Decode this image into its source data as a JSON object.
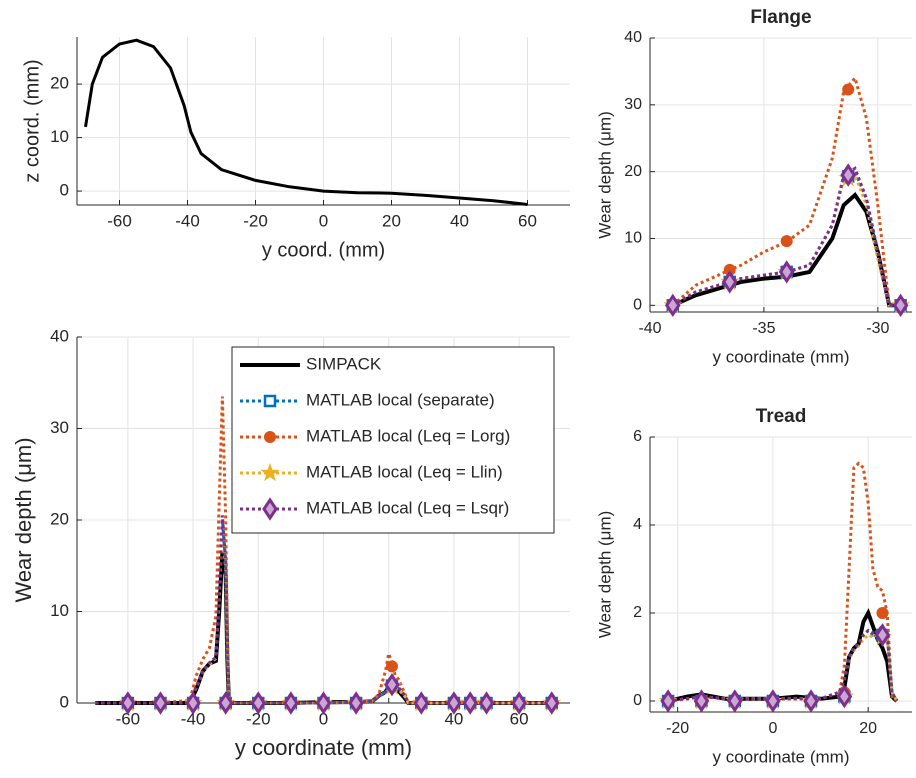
{
  "chart_data": [
    {
      "type": "line",
      "xlabel": "y coord. (mm)",
      "ylabel": "z coord. (mm)",
      "xlim": [
        -72.5,
        72.5
      ],
      "ylim": [
        -2.6,
        28.8
      ],
      "xticks": [
        -60,
        -40,
        -20,
        0,
        20,
        40,
        60
      ],
      "yticks": [
        0,
        10,
        20
      ],
      "grid": true,
      "series": [
        {
          "color": "#000000",
          "line_style": "solid",
          "x": [
            -70,
            -68,
            -65,
            -60,
            -55,
            -50,
            -45,
            -41,
            -39,
            -36,
            -30,
            -20,
            -10,
            0,
            10,
            20,
            30,
            40,
            50,
            60
          ],
          "values": [
            12,
            20,
            25,
            27.5,
            28.2,
            27,
            23,
            16,
            11,
            7,
            4,
            2,
            0.8,
            0,
            -0.3,
            -0.4,
            -0.8,
            -1.3,
            -1.8,
            -2.5
          ]
        }
      ]
    },
    {
      "type": "line",
      "xlabel": "y coordinate (mm)",
      "ylabel": "Wear depth (μm)",
      "xlim": [
        -75.6,
        75.6
      ],
      "ylim": [
        0,
        40
      ],
      "xticks": [
        -60,
        -40,
        -20,
        0,
        20,
        40,
        60
      ],
      "yticks": [
        0,
        10,
        20,
        30,
        40
      ],
      "grid": true,
      "legend": "northeast",
      "x": [
        -70,
        -60,
        -50,
        -41,
        -39,
        -37,
        -35,
        -33,
        -32,
        -31,
        -30,
        -29.5,
        -29,
        -20,
        -10,
        0,
        10,
        15,
        17,
        19,
        20,
        21,
        22,
        23,
        25,
        26,
        30,
        40,
        50,
        60,
        70
      ],
      "series": [
        {
          "name": "SIMPACK",
          "color": "#000000",
          "line_style": "solid",
          "values": [
            0,
            0,
            0,
            0,
            1.5,
            3.5,
            4.3,
            4.6,
            10,
            16.5,
            14,
            5,
            0,
            0,
            0,
            0.1,
            0.1,
            0.2,
            0.8,
            1.2,
            1.8,
            2,
            1.6,
            1.3,
            0.5,
            0,
            0,
            0,
            0,
            0,
            0
          ]
        },
        {
          "name": "MATLAB local (separate)",
          "color": "#0072BD",
          "line_style": "dotted",
          "marker": "square",
          "values": [
            0,
            0,
            0,
            0,
            1.8,
            3.5,
            4.3,
            5,
            12,
            20,
            15,
            6,
            0,
            0,
            0,
            0,
            0.1,
            0.2,
            0.8,
            1.2,
            1.5,
            1.7,
            1.8,
            1.6,
            0.8,
            0,
            0,
            0,
            0,
            0,
            0
          ],
          "markers": {
            "x": [
              -60,
              -50,
              -40,
              -30,
              -20,
              -10,
              0,
              10,
              21,
              30,
              40,
              45,
              50,
              60,
              70
            ],
            "values": [
              0,
              0,
              0,
              0,
              0,
              0,
              0,
              0,
              1.9,
              0,
              0,
              0,
              0,
              0,
              0
            ]
          }
        },
        {
          "name": "MATLAB local (Leq = Lorg)",
          "color": "#D95319",
          "line_style": "dotted",
          "marker": "circle",
          "values": [
            0,
            0,
            0,
            0.3,
            3,
            4.8,
            6,
            9.5,
            22,
            33.5,
            20,
            8,
            0,
            0,
            0,
            0,
            0.1,
            0.2,
            1,
            3.5,
            5.4,
            4.5,
            3,
            2.6,
            1,
            0,
            0,
            0,
            0,
            0,
            0
          ],
          "markers": {
            "x": [
              -60,
              -50,
              -40,
              -30,
              -20,
              -10,
              0,
              10,
              21,
              30,
              40,
              45,
              50,
              60,
              70
            ],
            "values": [
              0,
              0,
              0,
              0,
              0,
              0,
              0,
              0,
              4,
              0,
              0,
              0,
              0,
              0,
              0
            ]
          }
        },
        {
          "name": "MATLAB local (Leq = Llin)",
          "color": "#EDB120",
          "line_style": "dotted",
          "marker": "star",
          "values": [
            0,
            0,
            0,
            0,
            1.7,
            3.4,
            4.2,
            4.9,
            11.5,
            19.5,
            14.5,
            5.5,
            0,
            0,
            0,
            0,
            0.1,
            0.2,
            0.8,
            1.1,
            1.4,
            1.6,
            1.7,
            1.5,
            0.7,
            0,
            0,
            0,
            0,
            0,
            0
          ],
          "markers": {
            "x": [
              -60,
              -50,
              -40,
              -30,
              -20,
              -10,
              0,
              10,
              21,
              30,
              40,
              45,
              50,
              60,
              70
            ],
            "values": [
              0,
              0,
              0,
              0,
              0,
              0,
              0,
              0,
              1.8,
              0,
              0,
              0,
              0,
              0,
              0
            ]
          }
        },
        {
          "name": "MATLAB local (Leq = Lsqr)",
          "color": "#7E2F8E",
          "line_style": "dotted",
          "marker": "diamond",
          "values": [
            0,
            0,
            0,
            0,
            1.8,
            3.5,
            4.4,
            5,
            12.5,
            20.5,
            15.5,
            6,
            0,
            0,
            0,
            0,
            0.1,
            0.2,
            0.8,
            1.2,
            1.6,
            1.8,
            1.9,
            1.7,
            0.8,
            0,
            0,
            0,
            0,
            0,
            0
          ],
          "markers": {
            "x": [
              -60,
              -50,
              -40,
              -30,
              -20,
              -10,
              0,
              10,
              21,
              30,
              40,
              45,
              50,
              60,
              70
            ],
            "values": [
              0,
              0,
              0,
              0,
              0,
              0,
              0,
              0,
              2,
              0,
              0,
              0,
              0,
              0,
              0
            ]
          }
        }
      ]
    },
    {
      "type": "line",
      "title": "Flange",
      "xlabel": "y coordinate (mm)",
      "ylabel": "Wear depth (μm)",
      "xlim": [
        -40,
        -28.5
      ],
      "ylim": [
        -1,
        40
      ],
      "xticks": [
        -40,
        -35,
        -30
      ],
      "yticks": [
        0,
        10,
        20,
        30,
        40
      ],
      "grid": true,
      "x": [
        -39,
        -38,
        -37,
        -36.5,
        -36,
        -35,
        -34,
        -33,
        -32,
        -31.5,
        -31,
        -30.5,
        -30,
        -29.5,
        -29
      ],
      "series": [
        {
          "color": "#000000",
          "line_style": "solid",
          "values": [
            0,
            1.5,
            2.5,
            3,
            3.5,
            4,
            4.3,
            5,
            10,
            15,
            16.5,
            14,
            8,
            0,
            0
          ]
        },
        {
          "color": "#0072BD",
          "line_style": "dotted",
          "marker": "square",
          "values": [
            0,
            2,
            3,
            3.5,
            4,
            4.5,
            5,
            6,
            12,
            19,
            20,
            16,
            8,
            0,
            0
          ],
          "markers": {
            "x": [
              -39,
              -36.5,
              -34,
              -31.3,
              -29
            ],
            "values": [
              0,
              3.5,
              5,
              19.3,
              0
            ]
          }
        },
        {
          "color": "#D95319",
          "line_style": "dotted",
          "marker": "circle",
          "values": [
            0,
            3,
            4.5,
            5.3,
            6,
            8,
            9.5,
            12,
            22,
            32,
            34,
            28,
            15,
            0,
            0
          ],
          "markers": {
            "x": [
              -39,
              -36.5,
              -34,
              -31.3,
              -29
            ],
            "values": [
              0,
              5.3,
              9.6,
              32.3,
              0
            ]
          }
        },
        {
          "color": "#EDB120",
          "line_style": "dotted",
          "marker": "star",
          "values": [
            0,
            2,
            3,
            3.5,
            4,
            4.5,
            5,
            6,
            12,
            19,
            19.5,
            15,
            7,
            0,
            0
          ],
          "markers": {
            "x": [
              -39,
              -36.5,
              -34,
              -31.3,
              -29
            ],
            "values": [
              0,
              3.5,
              5,
              19,
              0
            ]
          }
        },
        {
          "color": "#7E2F8E",
          "line_style": "dotted",
          "marker": "diamond",
          "values": [
            0,
            2,
            3,
            3.5,
            4,
            4.5,
            5,
            6,
            12,
            19.5,
            20.5,
            16,
            8,
            0,
            0
          ],
          "markers": {
            "x": [
              -39,
              -36.5,
              -34,
              -31.3,
              -29
            ],
            "values": [
              0,
              3.5,
              5,
              19.5,
              0
            ]
          }
        }
      ]
    },
    {
      "type": "line",
      "title": "Tread",
      "xlabel": "y coordinate (mm)",
      "ylabel": "Wear depth (μm)",
      "xlim": [
        -25.8,
        29.2
      ],
      "ylim": [
        -0.25,
        6
      ],
      "xticks": [
        -20,
        0,
        20
      ],
      "yticks": [
        0,
        2,
        4,
        6
      ],
      "grid": true,
      "x": [
        -22,
        -18,
        -15,
        -10,
        -5,
        0,
        5,
        10,
        14,
        15,
        16,
        17,
        18,
        19,
        20,
        21,
        22,
        23,
        24,
        25,
        26
      ],
      "series": [
        {
          "color": "#000000",
          "line_style": "solid",
          "values": [
            0,
            0.1,
            0.15,
            0.05,
            0.05,
            0.05,
            0.1,
            0.05,
            0.1,
            0.3,
            1,
            1.2,
            1.3,
            1.8,
            2,
            1.7,
            1.4,
            1.2,
            0.9,
            0.1,
            0
          ]
        },
        {
          "color": "#0072BD",
          "line_style": "dotted",
          "marker": "square",
          "values": [
            0,
            0.05,
            0.1,
            0.05,
            0.05,
            0.05,
            0.05,
            0.05,
            0.2,
            0.5,
            1,
            1.2,
            1.3,
            1.5,
            1.6,
            1.5,
            1.6,
            1.7,
            1.5,
            0.2,
            0
          ],
          "markers": {
            "x": [
              -22,
              -15,
              -8,
              0,
              8,
              15,
              23
            ],
            "values": [
              0,
              0,
              0,
              0,
              0,
              0.1,
              1.5
            ]
          }
        },
        {
          "color": "#D95319",
          "line_style": "dotted",
          "marker": "circle",
          "values": [
            0,
            0.05,
            0.1,
            0.05,
            0.05,
            0.05,
            0.05,
            0.05,
            0.2,
            0.8,
            3,
            5.3,
            5.4,
            5.3,
            4.5,
            3,
            2.6,
            2.5,
            2,
            0.1,
            0
          ],
          "markers": {
            "x": [
              -22,
              -15,
              -8,
              0,
              8,
              15,
              23
            ],
            "values": [
              0,
              0,
              0,
              0,
              0,
              0.2,
              2
            ]
          }
        },
        {
          "color": "#EDB120",
          "line_style": "dotted",
          "marker": "star",
          "values": [
            0,
            0.05,
            0.1,
            0.05,
            0.05,
            0.05,
            0.05,
            0.05,
            0.2,
            0.5,
            0.95,
            1.15,
            1.25,
            1.4,
            1.5,
            1.45,
            1.5,
            1.6,
            1.45,
            0.2,
            0
          ],
          "markers": {
            "x": [
              -22,
              -15,
              -8,
              0,
              8,
              15,
              23
            ],
            "values": [
              0,
              0,
              0,
              0,
              0,
              0.1,
              1.45
            ]
          }
        },
        {
          "color": "#7E2F8E",
          "line_style": "dotted",
          "marker": "diamond",
          "values": [
            0,
            0.05,
            0.1,
            0.05,
            0.05,
            0.05,
            0.05,
            0.05,
            0.2,
            0.5,
            1,
            1.2,
            1.3,
            1.5,
            1.6,
            1.55,
            1.6,
            1.7,
            1.5,
            0.2,
            0
          ],
          "markers": {
            "x": [
              -22,
              -15,
              -8,
              0,
              8,
              15,
              23
            ],
            "values": [
              0,
              0,
              0,
              0,
              0,
              0.1,
              1.5
            ]
          }
        }
      ]
    }
  ]
}
